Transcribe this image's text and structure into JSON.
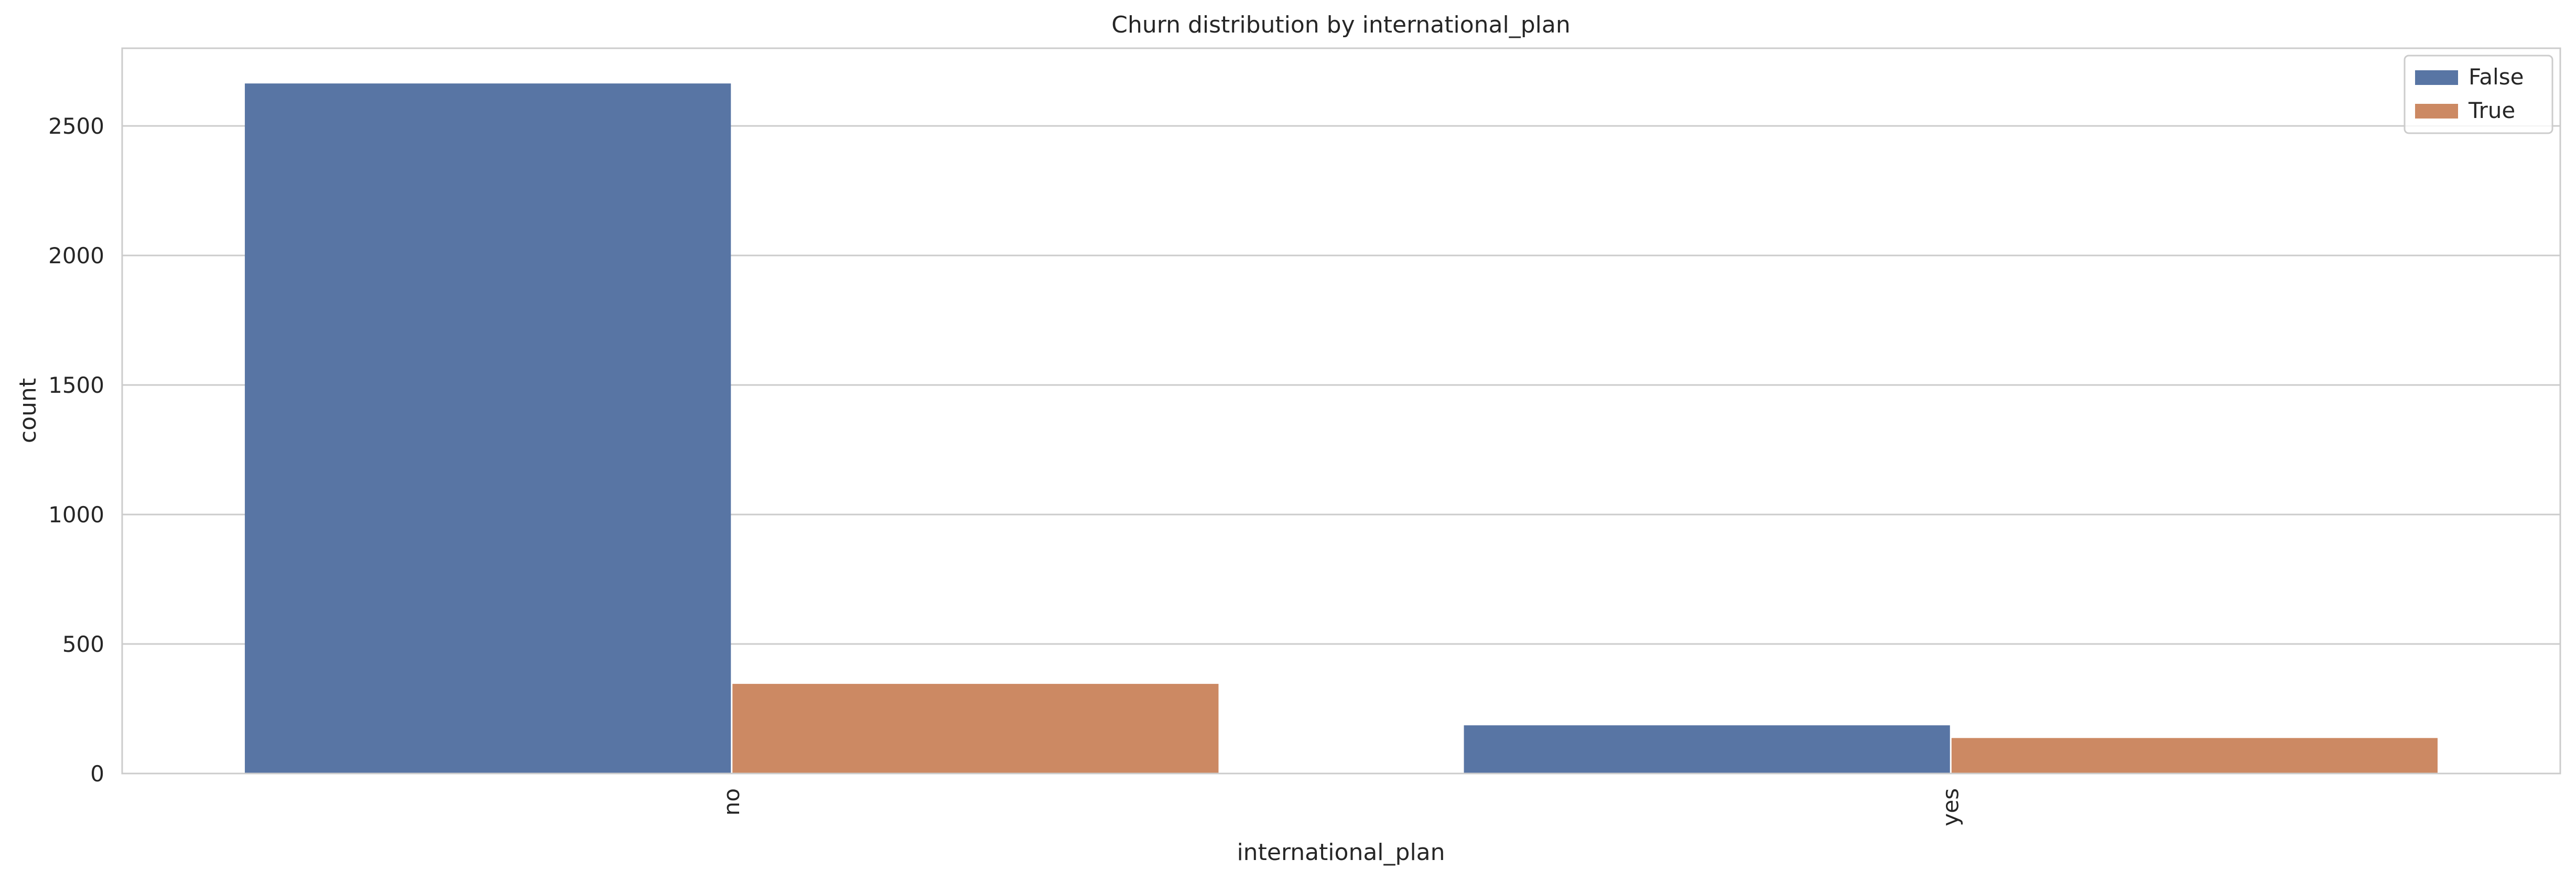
{
  "chart_data": {
    "type": "bar",
    "title": "Churn distribution by international_plan",
    "xlabel": "international_plan",
    "ylabel": "count",
    "categories": [
      "no",
      "yes"
    ],
    "series": [
      {
        "name": "False",
        "values": [
          2664,
          186
        ],
        "color": "#5875a4"
      },
      {
        "name": "True",
        "values": [
          346,
          137
        ],
        "color": "#cc8963"
      }
    ],
    "ylim": [
      0,
      2800
    ],
    "yticks": [
      0,
      500,
      1000,
      1500,
      2000,
      2500
    ],
    "grid": true,
    "legend": "top-right",
    "x_tick_rotation": "vertical"
  }
}
